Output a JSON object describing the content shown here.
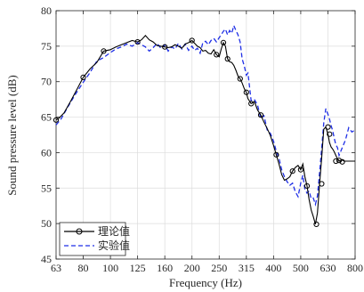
{
  "chart_data": {
    "type": "line",
    "title": "",
    "xlabel": "Frequency (Hz)",
    "ylabel": "Sound pressure level (dB)",
    "x_scale": "octave-band",
    "xticks": [
      63,
      80,
      100,
      125,
      160,
      200,
      250,
      315,
      400,
      500,
      630,
      800
    ],
    "xlim": [
      63,
      800
    ],
    "ylim": [
      45,
      80
    ],
    "yticks": [
      45,
      50,
      55,
      60,
      65,
      70,
      75,
      80
    ],
    "grid": true,
    "legend_position": "bottom-left",
    "colors": {
      "theory": "#000000",
      "experiment": "#1f2fe6"
    },
    "series": [
      {
        "name": "理论值",
        "style": "solid-with-circle-markers",
        "x": [
          63,
          65,
          68,
          72,
          76,
          80,
          85,
          90,
          95,
          100,
          105,
          110,
          115,
          120,
          125,
          130,
          135,
          140,
          145,
          150,
          155,
          160,
          165,
          170,
          175,
          180,
          185,
          190,
          195,
          200,
          205,
          210,
          215,
          220,
          225,
          230,
          235,
          240,
          245,
          250,
          255,
          260,
          265,
          270,
          275,
          280,
          285,
          290,
          295,
          300,
          305,
          310,
          315,
          320,
          330,
          340,
          350,
          360,
          370,
          380,
          390,
          400,
          410,
          420,
          430,
          440,
          450,
          460,
          470,
          480,
          490,
          500,
          510,
          520,
          530,
          540,
          550,
          560,
          570,
          580,
          590,
          600,
          610,
          620,
          630,
          640,
          650,
          660,
          670,
          680,
          690,
          700,
          710,
          720,
          730,
          740,
          750,
          760,
          770,
          780,
          790,
          800
        ],
        "y": [
          64.6,
          64.9,
          65.6,
          67.2,
          68.9,
          70.6,
          71.8,
          72.7,
          74.3,
          74.5,
          74.9,
          75.2,
          75.5,
          75.8,
          75.6,
          75.9,
          76.5,
          75.9,
          75.6,
          75.1,
          75.0,
          74.9,
          74.8,
          74.9,
          75.2,
          75.0,
          74.7,
          75.3,
          75.5,
          75.8,
          75.4,
          75.0,
          74.8,
          74.3,
          74.4,
          74.0,
          73.9,
          74.5,
          73.8,
          73.5,
          74.6,
          75.5,
          75.0,
          73.2,
          72.8,
          72.7,
          72.3,
          71.6,
          70.8,
          70.4,
          69.8,
          69.0,
          68.5,
          67.6,
          66.9,
          67.2,
          66.0,
          65.3,
          64.3,
          63.4,
          62.4,
          61.0,
          59.7,
          58.4,
          56.9,
          56.1,
          56.3,
          56.6,
          57.4,
          57.9,
          58.2,
          57.6,
          58.4,
          56.6,
          55.3,
          53.4,
          51.9,
          51.0,
          49.9,
          51.5,
          55.6,
          59.2,
          63.3,
          63.6,
          62.6,
          61.4,
          60.8,
          60.5,
          60.1,
          59.6,
          59.1,
          58.9,
          58.7,
          59.0,
          58.8,
          58.8,
          58.8,
          58.8,
          58.8,
          58.8,
          58.8,
          58.8
        ],
        "marker_x": [
          63,
          80,
          95,
          125,
          160,
          200,
          245,
          260,
          270,
          300,
          315,
          330,
          360,
          410,
          470,
          500,
          530,
          575,
          600,
          630,
          640,
          680,
          700,
          720
        ],
        "marker_y": [
          64.6,
          70.6,
          74.3,
          75.6,
          74.9,
          75.8,
          73.8,
          75.5,
          73.2,
          70.4,
          68.5,
          66.9,
          65.3,
          59.7,
          57.4,
          57.6,
          55.3,
          49.9,
          55.6,
          63.6,
          62.6,
          58.8,
          58.9,
          58.7
        ]
      },
      {
        "name": "实验值",
        "style": "dashed",
        "x": [
          63,
          66,
          70,
          75,
          80,
          85,
          90,
          95,
          100,
          105,
          110,
          115,
          120,
          125,
          130,
          135,
          140,
          145,
          150,
          155,
          160,
          165,
          170,
          175,
          180,
          185,
          190,
          195,
          200,
          205,
          210,
          215,
          220,
          225,
          230,
          235,
          240,
          245,
          250,
          255,
          260,
          265,
          270,
          275,
          280,
          285,
          290,
          295,
          300,
          305,
          310,
          315,
          320,
          330,
          340,
          350,
          360,
          370,
          380,
          390,
          400,
          410,
          420,
          430,
          440,
          450,
          460,
          470,
          480,
          490,
          500,
          510,
          520,
          530,
          540,
          550,
          560,
          570,
          580,
          590,
          600,
          610,
          620,
          630,
          640,
          650,
          660,
          670,
          680,
          690,
          700,
          720,
          740,
          760,
          780,
          800
        ],
        "y": [
          63.9,
          64.7,
          66.3,
          68.2,
          69.9,
          71.3,
          72.9,
          73.4,
          74.1,
          74.6,
          74.9,
          75.3,
          75.0,
          75.5,
          75.2,
          74.9,
          74.3,
          74.8,
          75.4,
          74.7,
          75.2,
          74.3,
          74.9,
          74.6,
          75.4,
          74.6,
          75.3,
          74.4,
          75.0,
          74.4,
          74.7,
          74.0,
          75.5,
          75.7,
          75.2,
          75.8,
          76.1,
          75.6,
          76.2,
          76.6,
          77.1,
          77.4,
          76.6,
          77.2,
          76.8,
          77.9,
          77.2,
          76.6,
          75.6,
          73.2,
          72.2,
          70.9,
          71.2,
          67.3,
          67.5,
          66.7,
          64.8,
          65.2,
          63.2,
          62.7,
          61.6,
          60.2,
          59.2,
          57.6,
          56.6,
          55.9,
          55.4,
          55.7,
          54.5,
          53.8,
          55.7,
          56.8,
          54.8,
          54.3,
          54.6,
          53.5,
          53.6,
          52.7,
          53.9,
          57.2,
          60.5,
          64.2,
          66.2,
          65.4,
          64.7,
          63.8,
          63.1,
          62.0,
          61.1,
          60.7,
          59.6,
          60.7,
          61.8,
          63.5,
          62.9,
          63.2
        ]
      }
    ]
  }
}
